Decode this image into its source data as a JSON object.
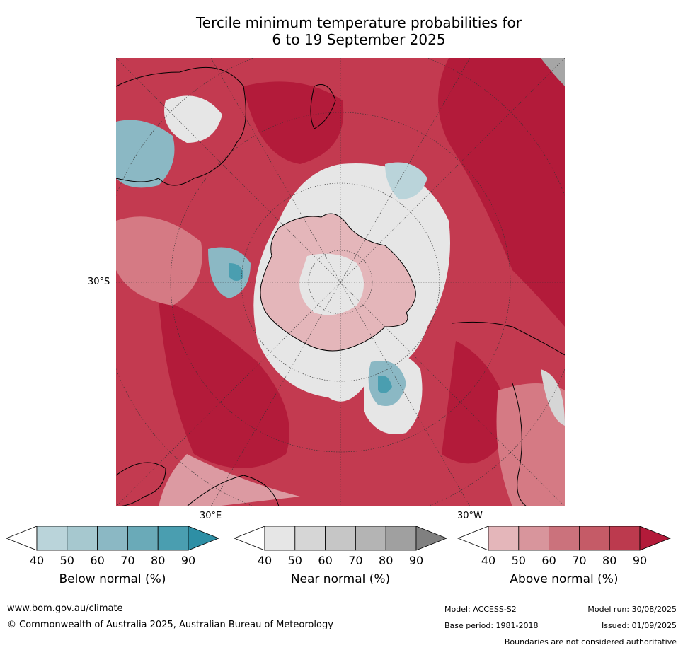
{
  "title_line1": "Tercile minimum temperature probabilities for",
  "title_line2": "6 to 19 September 2025",
  "map": {
    "lat_label": "30°S",
    "lon_label_east": "30°E",
    "lon_label_west": "30°W",
    "colors": {
      "above_90": "#b31b3a",
      "above_80": "#c33a50",
      "above_70": "#cb4f61",
      "above_60": "#d57a84",
      "above_50": "#dc9aa2",
      "above_40": "#e4b6ba",
      "near_40": "#e6e6e6",
      "near_50": "#d6d6d6",
      "below_40": "#bad4da",
      "below_60": "#8bb8c4",
      "below_80": "#4a9eb0",
      "land_outline": "#000000",
      "missing": "#a6a6a6"
    }
  },
  "colorbars": [
    {
      "label": "Below normal (%)",
      "ticks": [
        "40",
        "50",
        "60",
        "70",
        "80",
        "90"
      ],
      "colors": [
        "#bad4da",
        "#a6c8cf",
        "#8bb8c4",
        "#6aaab8",
        "#4a9eb0",
        "#2e8fa5"
      ]
    },
    {
      "label": "Near normal (%)",
      "ticks": [
        "40",
        "50",
        "60",
        "70",
        "80",
        "90"
      ],
      "colors": [
        "#e6e6e6",
        "#d6d6d6",
        "#c6c6c6",
        "#b4b4b4",
        "#a0a0a0",
        "#808080"
      ]
    },
    {
      "label": "Above normal (%)",
      "ticks": [
        "40",
        "50",
        "60",
        "70",
        "80",
        "90"
      ],
      "colors": [
        "#e4b6ba",
        "#d8959c",
        "#cb727c",
        "#c55b67",
        "#bc3a4e",
        "#b31b3a"
      ]
    }
  ],
  "footer": {
    "website": "www.bom.gov.au/climate",
    "copyright": "© Commonwealth of Australia 2025, Australian Bureau of Meteorology",
    "model": "Model: ACCESS-S2",
    "model_run": "Model run: 30/08/2025",
    "base_period": "Base period: 1981-2018",
    "issued": "Issued: 01/09/2025",
    "disclaimer": "Boundaries are not considered authoritative"
  }
}
